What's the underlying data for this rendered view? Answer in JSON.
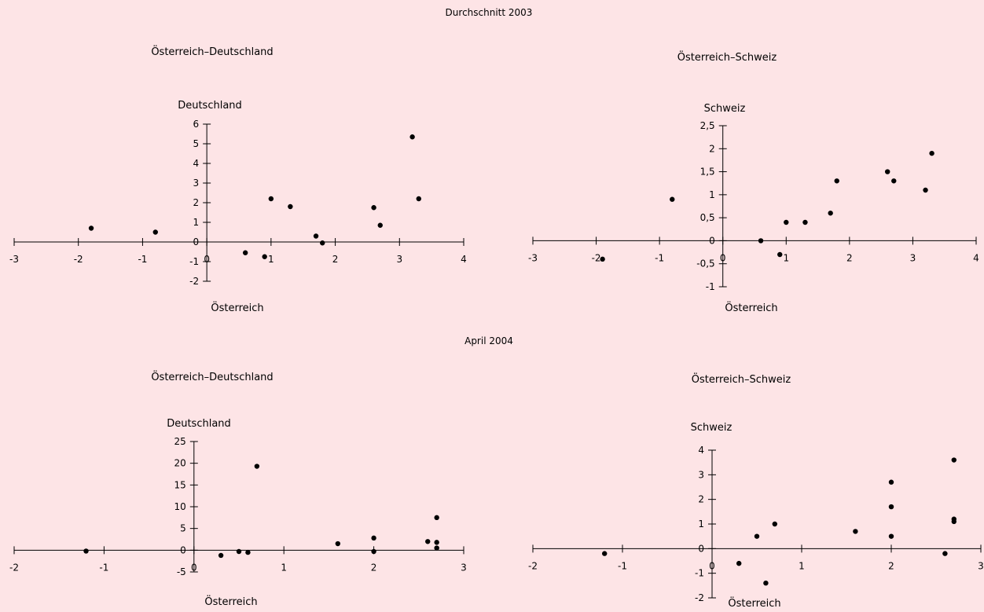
{
  "sections": [
    {
      "title": "Durchschnitt 2003"
    },
    {
      "title": "April 2004"
    }
  ],
  "chart_data": [
    {
      "type": "scatter",
      "section": "Durchschnitt 2003",
      "title": "Österreich–Deutschland",
      "xlabel": "Österreich",
      "ylabel": "Deutschland",
      "xlim": [
        -3,
        4
      ],
      "ylim": [
        -2,
        6
      ],
      "xticks": [
        -3,
        -2,
        -1,
        0,
        1,
        2,
        3,
        4
      ],
      "yticks": [
        -2,
        -1,
        0,
        1,
        2,
        3,
        4,
        5,
        6
      ],
      "xtick_labels": [
        "-3",
        "-2",
        "-1",
        "0",
        "1",
        "2",
        "3",
        "4"
      ],
      "ytick_labels": [
        "-2",
        "-1",
        "0",
        "1",
        "2",
        "3",
        "4",
        "5",
        "6"
      ],
      "points": [
        [
          -1.8,
          0.7
        ],
        [
          -0.8,
          0.5
        ],
        [
          0.6,
          -0.55
        ],
        [
          0.9,
          -0.75
        ],
        [
          1.0,
          2.2
        ],
        [
          1.3,
          1.8
        ],
        [
          1.7,
          0.3
        ],
        [
          1.8,
          -0.05
        ],
        [
          2.6,
          1.75
        ],
        [
          2.7,
          0.85
        ],
        [
          3.2,
          5.35
        ],
        [
          3.3,
          2.2
        ]
      ]
    },
    {
      "type": "scatter",
      "section": "Durchschnitt 2003",
      "title": "Österreich–Schweiz",
      "xlabel": "Österreich",
      "ylabel": "Schweiz",
      "xlim": [
        -3,
        4
      ],
      "ylim": [
        -1,
        2.5
      ],
      "xticks": [
        -3,
        -2,
        -1,
        0,
        1,
        2,
        3,
        4
      ],
      "yticks": [
        -1,
        -0.5,
        0,
        0.5,
        1,
        1.5,
        2,
        2.5
      ],
      "xtick_labels": [
        "-3",
        "-2",
        "-1",
        "0",
        "1",
        "2",
        "3",
        "4"
      ],
      "ytick_labels": [
        "-1",
        "-0,5",
        "0",
        "0,5",
        "1",
        "1,5",
        "2",
        "2,5"
      ],
      "points": [
        [
          -1.9,
          -0.4
        ],
        [
          -0.8,
          0.9
        ],
        [
          0.6,
          0.0
        ],
        [
          0.9,
          -0.3
        ],
        [
          1.0,
          0.4
        ],
        [
          1.3,
          0.4
        ],
        [
          1.7,
          0.6
        ],
        [
          1.8,
          1.3
        ],
        [
          2.6,
          1.5
        ],
        [
          2.7,
          1.3
        ],
        [
          3.2,
          1.1
        ],
        [
          3.3,
          1.9
        ]
      ]
    },
    {
      "type": "scatter",
      "section": "April 2004",
      "title": "Österreich–Deutschland",
      "xlabel": "Österreich",
      "ylabel": "Deutschland",
      "xlim": [
        -2,
        3
      ],
      "ylim": [
        -5,
        25
      ],
      "xticks": [
        -2,
        -1,
        0,
        1,
        2,
        3
      ],
      "yticks": [
        -5,
        0,
        5,
        10,
        15,
        20,
        25
      ],
      "xtick_labels": [
        "-2",
        "-1",
        "0",
        "1",
        "2",
        "3"
      ],
      "ytick_labels": [
        "-5",
        "0",
        "5",
        "10",
        "15",
        "20",
        "25"
      ],
      "points": [
        [
          -1.2,
          -0.2
        ],
        [
          0.3,
          -1.2
        ],
        [
          0.5,
          -0.3
        ],
        [
          0.6,
          -0.5
        ],
        [
          0.7,
          19.3
        ],
        [
          1.6,
          1.5
        ],
        [
          2.0,
          2.8
        ],
        [
          2.0,
          -0.3
        ],
        [
          2.6,
          2.0
        ],
        [
          2.7,
          7.5
        ],
        [
          2.7,
          1.8
        ],
        [
          2.7,
          0.5
        ]
      ]
    },
    {
      "type": "scatter",
      "section": "April 2004",
      "title": "Österreich–Schweiz",
      "xlabel": "Österreich",
      "ylabel": "Schweiz",
      "xlim": [
        -2,
        3
      ],
      "ylim": [
        -2,
        4
      ],
      "xticks": [
        -2,
        -1,
        0,
        1,
        2,
        3
      ],
      "yticks": [
        -2,
        -1,
        0,
        1,
        2,
        3,
        4
      ],
      "xtick_labels": [
        "-2",
        "-1",
        "0",
        "1",
        "2",
        "3"
      ],
      "ytick_labels": [
        "-2",
        "-1",
        "0",
        "1",
        "2",
        "3",
        "4"
      ],
      "points": [
        [
          -1.2,
          -0.2
        ],
        [
          0.3,
          -0.6
        ],
        [
          0.5,
          0.5
        ],
        [
          0.6,
          -1.4
        ],
        [
          0.7,
          1.0
        ],
        [
          1.6,
          0.7
        ],
        [
          2.0,
          2.7
        ],
        [
          2.0,
          1.7
        ],
        [
          2.0,
          0.5
        ],
        [
          2.6,
          -0.2
        ],
        [
          2.7,
          3.6
        ],
        [
          2.7,
          1.2
        ],
        [
          2.7,
          1.1
        ]
      ]
    }
  ]
}
